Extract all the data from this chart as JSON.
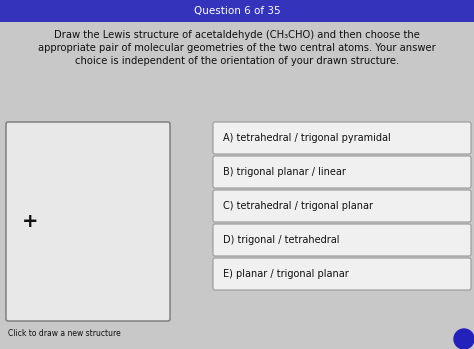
{
  "title": "Question 6 of 35",
  "title_bg": "#3333bb",
  "title_color": "#ffffff",
  "question_text_line1": "Draw the Lewis structure of acetaldehyde (CH₃CHO) and then choose the",
  "question_text_line2": "appropriate pair of molecular geometries of the two central atoms. Your answer",
  "question_text_line3": "choice is independent of the orientation of your drawn structure.",
  "options": [
    "A) tetrahedral / trigonal pyramidal",
    "B) trigonal planar / linear",
    "C) tetrahedral / trigonal planar",
    "D) trigonal / tetrahedral",
    "E) planar / trigonal planar"
  ],
  "draw_box_label": "Click to draw a new structure",
  "plus_sign": "+",
  "bg_color": "#c8c8c8",
  "box_bg": "#e8e8e8",
  "option_bg": "#f0f0f0",
  "option_border": "#999999",
  "text_color": "#111111",
  "fig_w": 4.74,
  "fig_h": 3.49,
  "dpi": 100
}
